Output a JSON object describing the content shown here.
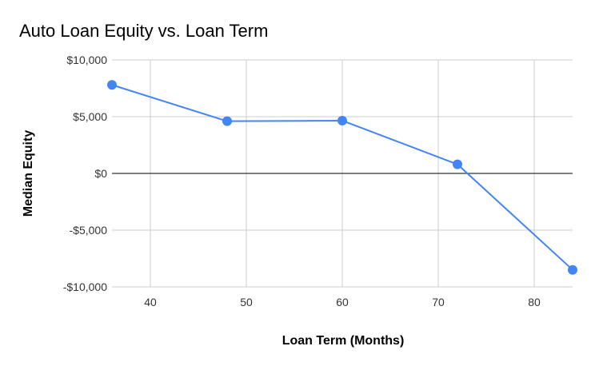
{
  "chart_data": {
    "type": "line",
    "title": "Auto Loan Equity vs. Loan Term",
    "xlabel": "Loan Term (Months)",
    "ylabel": "Median Equity",
    "x": [
      36,
      48,
      60,
      72,
      84
    ],
    "series": [
      {
        "values": [
          7800,
          4600,
          4650,
          800,
          -8500
        ],
        "color": "#4285f4"
      }
    ],
    "xlim": [
      36,
      84
    ],
    "ylim": [
      -10000,
      10000
    ],
    "x_ticks": [
      {
        "value": 40,
        "label": "40"
      },
      {
        "value": 50,
        "label": "50"
      },
      {
        "value": 60,
        "label": "60"
      },
      {
        "value": 70,
        "label": "70"
      },
      {
        "value": 80,
        "label": "80"
      }
    ],
    "y_ticks": [
      {
        "value": 10000,
        "label": "$10,000"
      },
      {
        "value": 5000,
        "label": "$5,000"
      },
      {
        "value": 0,
        "label": "$0"
      },
      {
        "value": -5000,
        "label": "-$5,000"
      },
      {
        "value": -10000,
        "label": "-$10,000"
      }
    ],
    "grid": true,
    "legend": "none"
  }
}
